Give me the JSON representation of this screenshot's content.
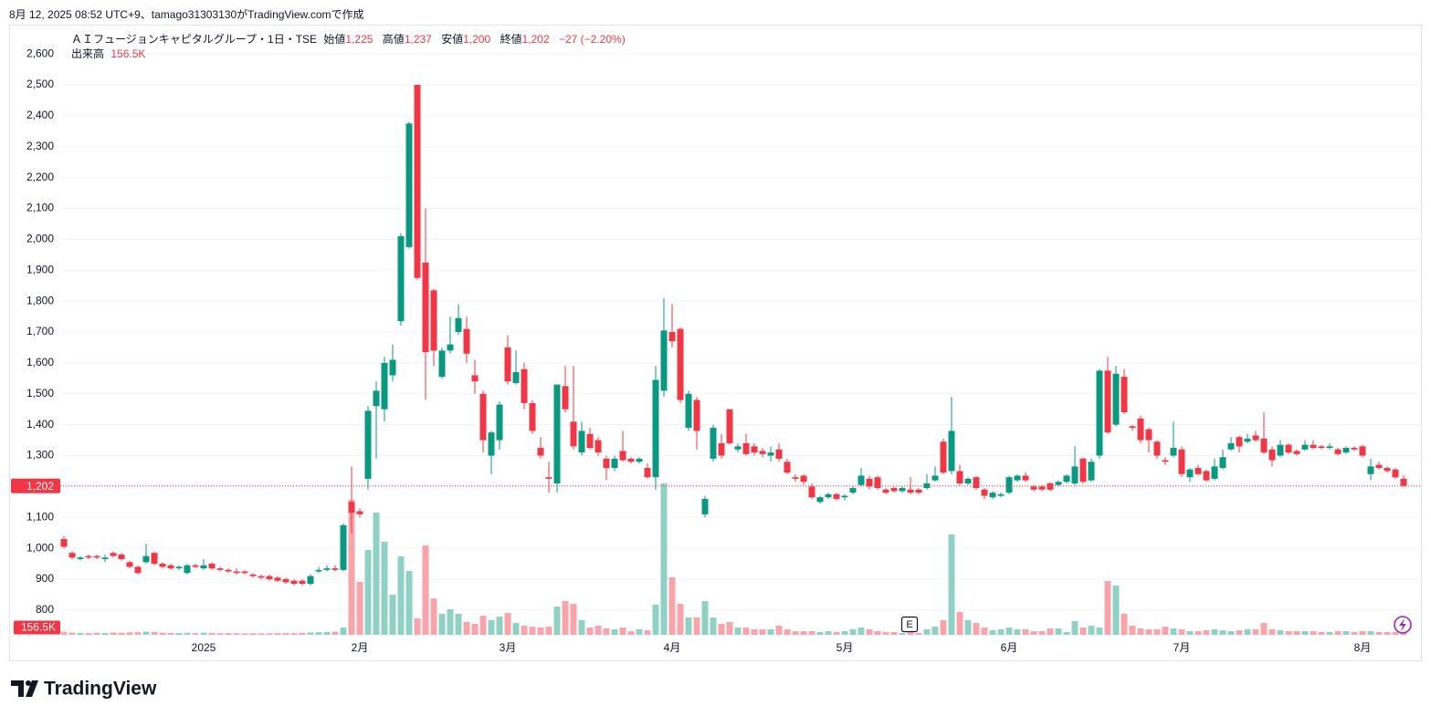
{
  "caption": "8月 12, 2025 08:52 UTC+9、tamago31303130がTradingView.comで作成",
  "legend": {
    "symbol": "ＡＩフュージョンキャピタルグループ・1日・TSE",
    "open_label": "始値",
    "open": "1,225",
    "high_label": "高値",
    "high": "1,237",
    "low_label": "安値",
    "low": "1,200",
    "close_label": "終値",
    "close": "1,202",
    "change": "−27 (−2.20%)",
    "volume_label": "出来高",
    "volume": "156.5K"
  },
  "earnings_marker": "E",
  "logo": "TradingView",
  "chart_data": {
    "type": "candlestick",
    "up_color": "#089981",
    "down_color": "#f23645",
    "grid": true,
    "ylim": [
      717,
      2692
    ],
    "yticks": [
      800,
      900,
      {
        "value": 1000,
        "label": "1,000"
      },
      {
        "value": 1100,
        "label": "1,100"
      },
      {
        "value": 1200,
        "label": "1,200"
      },
      {
        "value": 1300,
        "label": "1,300"
      },
      {
        "value": 1400,
        "label": "1,400"
      },
      {
        "value": 1500,
        "label": "1,500"
      },
      {
        "value": 1600,
        "label": "1,600"
      },
      {
        "value": 1700,
        "label": "1,700"
      },
      {
        "value": 1800,
        "label": "1,800"
      },
      {
        "value": 1900,
        "label": "1,900"
      },
      {
        "value": 2000,
        "label": "2,000"
      },
      {
        "value": 2100,
        "label": "2,100"
      },
      {
        "value": 2200,
        "label": "2,200"
      },
      {
        "value": 2300,
        "label": "2,300"
      },
      {
        "value": 2400,
        "label": "2,400"
      },
      {
        "value": 2500,
        "label": "2,500"
      },
      {
        "value": 2600,
        "label": "2,600"
      }
    ],
    "last_price_label": "1,202",
    "last_volume_label": "156.5K",
    "categories": [
      null,
      null,
      null,
      null,
      null,
      null,
      null,
      null,
      null,
      null,
      null,
      null,
      null,
      null,
      null,
      null,
      null,
      "2025",
      null,
      null,
      null,
      null,
      null,
      null,
      null,
      null,
      null,
      null,
      null,
      null,
      null,
      null,
      null,
      null,
      null,
      null,
      "2月",
      null,
      null,
      null,
      null,
      null,
      null,
      null,
      null,
      null,
      null,
      null,
      null,
      null,
      null,
      null,
      null,
      null,
      "3月",
      null,
      null,
      null,
      null,
      null,
      null,
      null,
      null,
      null,
      null,
      null,
      null,
      null,
      null,
      null,
      null,
      null,
      null,
      null,
      "4月",
      null,
      null,
      null,
      null,
      null,
      null,
      null,
      null,
      null,
      null,
      null,
      null,
      null,
      null,
      null,
      null,
      null,
      null,
      null,
      null,
      "5月",
      null,
      null,
      null,
      null,
      null,
      null,
      null,
      null,
      null,
      null,
      null,
      null,
      null,
      null,
      null,
      null,
      null,
      null,
      null,
      "6月",
      null,
      null,
      null,
      null,
      null,
      null,
      null,
      null,
      null,
      null,
      null,
      null,
      null,
      null,
      null,
      null,
      null,
      null,
      null,
      null,
      "7月",
      null,
      null,
      null,
      null,
      null,
      null,
      null,
      null,
      null,
      null,
      null,
      null,
      null,
      null,
      null,
      null,
      null,
      null,
      null,
      null,
      null,
      "8月",
      null,
      null,
      null,
      null,
      null
    ],
    "open": [
      1030,
      985,
      965,
      975,
      975,
      965,
      985,
      980,
      955,
      940,
      955,
      985,
      950,
      945,
      935,
      920,
      945,
      935,
      950,
      935,
      930,
      925,
      925,
      915,
      910,
      910,
      905,
      900,
      895,
      895,
      885,
      925,
      930,
      935,
      930,
      1150,
      1120,
      1225,
      1460,
      1450,
      1560,
      1735,
      1975,
      2500,
      1925,
      1835,
      1555,
      1640,
      1700,
      1710,
      1560,
      1500,
      1300,
      1350,
      1650,
      1535,
      1580,
      1470,
      1325,
      1230,
      1210,
      1525,
      1410,
      1310,
      1370,
      1350,
      1290,
      1260,
      1315,
      1290,
      1280,
      1260,
      1230,
      1510,
      1700,
      1710,
      1390,
      1480,
      1110,
      1290,
      1340,
      1450,
      1320,
      1340,
      1330,
      1315,
      1300,
      1320,
      1280,
      1230,
      1235,
      1200,
      1150,
      1165,
      1175,
      1165,
      1180,
      1205,
      1225,
      1230,
      1190,
      1195,
      1185,
      1190,
      1190,
      1195,
      1220,
      1345,
      1250,
      1250,
      1210,
      1230,
      1190,
      1165,
      1170,
      1180,
      1220,
      1235,
      1200,
      1200,
      1210,
      1205,
      1215,
      1210,
      1290,
      1220,
      1300,
      1575,
      1400,
      1555,
      1395,
      1420,
      1385,
      1345,
      1285,
      1300,
      1320,
      1230,
      1260,
      1250,
      1225,
      1260,
      1320,
      1360,
      1345,
      1365,
      1355,
      1320,
      1300,
      1335,
      1315,
      1320,
      1335,
      1330,
      1325,
      1320,
      1310,
      1325,
      1330,
      1240,
      1270,
      1260,
      1255,
      1225
    ],
    "high": [
      1040,
      990,
      975,
      980,
      980,
      980,
      990,
      985,
      960,
      945,
      1015,
      990,
      955,
      950,
      945,
      950,
      950,
      965,
      955,
      940,
      935,
      935,
      930,
      920,
      915,
      915,
      910,
      905,
      900,
      900,
      915,
      940,
      945,
      945,
      1080,
      1265,
      1130,
      1460,
      1540,
      1620,
      1660,
      2020,
      2380,
      2500,
      2100,
      1840,
      1650,
      1750,
      1790,
      1750,
      1610,
      1510,
      1380,
      1475,
      1690,
      1640,
      1600,
      1480,
      1360,
      1280,
      1530,
      1590,
      1590,
      1410,
      1390,
      1360,
      1300,
      1300,
      1380,
      1295,
      1295,
      1275,
      1590,
      1810,
      1790,
      1715,
      1510,
      1490,
      1170,
      1400,
      1370,
      1450,
      1340,
      1370,
      1340,
      1325,
      1330,
      1340,
      1290,
      1240,
      1240,
      1210,
      1170,
      1180,
      1180,
      1175,
      1200,
      1260,
      1235,
      1235,
      1195,
      1200,
      1200,
      1230,
      1195,
      1240,
      1265,
      1355,
      1490,
      1270,
      1230,
      1235,
      1195,
      1185,
      1180,
      1235,
      1240,
      1245,
      1205,
      1205,
      1215,
      1220,
      1240,
      1330,
      1295,
      1290,
      1580,
      1620,
      1590,
      1580,
      1400,
      1430,
      1390,
      1350,
      1295,
      1410,
      1330,
      1260,
      1270,
      1255,
      1290,
      1320,
      1360,
      1365,
      1370,
      1380,
      1440,
      1330,
      1350,
      1340,
      1320,
      1350,
      1350,
      1335,
      1340,
      1325,
      1330,
      1330,
      1335,
      1290,
      1280,
      1265,
      1260,
      1237
    ],
    "low": [
      1000,
      965,
      960,
      965,
      965,
      955,
      970,
      960,
      935,
      915,
      950,
      945,
      935,
      930,
      930,
      915,
      935,
      930,
      930,
      925,
      920,
      915,
      915,
      905,
      900,
      895,
      890,
      885,
      880,
      880,
      880,
      920,
      925,
      925,
      925,
      1050,
      1100,
      1190,
      1290,
      1410,
      1540,
      1720,
      1970,
      1870,
      1480,
      1590,
      1550,
      1630,
      1690,
      1600,
      1500,
      1310,
      1240,
      1320,
      1530,
      1530,
      1450,
      1370,
      1290,
      1180,
      1180,
      1440,
      1320,
      1300,
      1320,
      1300,
      1220,
      1250,
      1280,
      1275,
      1275,
      1225,
      1190,
      1490,
      1650,
      1470,
      1380,
      1320,
      1100,
      1280,
      1290,
      1335,
      1310,
      1300,
      1300,
      1295,
      1280,
      1280,
      1240,
      1215,
      1205,
      1160,
      1145,
      1160,
      1155,
      1155,
      1175,
      1200,
      1190,
      1190,
      1175,
      1180,
      1180,
      1175,
      1175,
      1190,
      1215,
      1240,
      1240,
      1205,
      1205,
      1190,
      1160,
      1160,
      1165,
      1175,
      1215,
      1215,
      1185,
      1185,
      1185,
      1200,
      1210,
      1205,
      1210,
      1215,
      1290,
      1370,
      1395,
      1435,
      1380,
      1340,
      1310,
      1290,
      1270,
      1295,
      1230,
      1215,
      1235,
      1215,
      1220,
      1255,
      1315,
      1310,
      1340,
      1345,
      1305,
      1265,
      1295,
      1305,
      1300,
      1315,
      1320,
      1320,
      1320,
      1300,
      1305,
      1315,
      1295,
      1220,
      1255,
      1245,
      1225,
      1200
    ],
    "close": [
      1005,
      970,
      970,
      970,
      970,
      970,
      975,
      965,
      940,
      920,
      975,
      950,
      940,
      935,
      940,
      945,
      940,
      945,
      935,
      930,
      925,
      920,
      920,
      910,
      905,
      900,
      895,
      890,
      885,
      885,
      910,
      930,
      935,
      930,
      1075,
      1115,
      1110,
      1445,
      1510,
      1600,
      1610,
      2010,
      2375,
      1875,
      1635,
      1640,
      1640,
      1660,
      1745,
      1630,
      1540,
      1350,
      1375,
      1465,
      1540,
      1570,
      1470,
      1380,
      1300,
      1225,
      1530,
      1450,
      1330,
      1380,
      1325,
      1310,
      1260,
      1290,
      1285,
      1280,
      1290,
      1230,
      1545,
      1705,
      1670,
      1480,
      1500,
      1380,
      1160,
      1390,
      1300,
      1340,
      1330,
      1305,
      1310,
      1305,
      1310,
      1290,
      1245,
      1225,
      1215,
      1165,
      1165,
      1175,
      1160,
      1170,
      1195,
      1235,
      1200,
      1195,
      1180,
      1185,
      1195,
      1180,
      1180,
      1210,
      1235,
      1245,
      1380,
      1210,
      1225,
      1195,
      1170,
      1180,
      1175,
      1230,
      1235,
      1220,
      1190,
      1190,
      1190,
      1215,
      1235,
      1265,
      1215,
      1280,
      1575,
      1375,
      1565,
      1440,
      1390,
      1350,
      1350,
      1300,
      1280,
      1325,
      1240,
      1255,
      1240,
      1220,
      1265,
      1295,
      1340,
      1330,
      1355,
      1350,
      1310,
      1285,
      1335,
      1310,
      1305,
      1335,
      1325,
      1325,
      1330,
      1305,
      1325,
      1320,
      1300,
      1265,
      1260,
      1250,
      1230,
      1202
    ],
    "volume": [
      210000,
      150000,
      130000,
      120000,
      140000,
      130000,
      160000,
      140000,
      170000,
      180000,
      220000,
      190000,
      150000,
      130000,
      120000,
      140000,
      120000,
      150000,
      130000,
      110000,
      120000,
      110000,
      100000,
      110000,
      100000,
      110000,
      120000,
      130000,
      120000,
      140000,
      160000,
      180000,
      200000,
      210000,
      500000,
      9260000,
      3630000,
      5820000,
      8390000,
      6390000,
      2750000,
      5380000,
      4380000,
      1130000,
      6130000,
      2500000,
      1440000,
      1750000,
      1440000,
      880000,
      750000,
      1310000,
      1000000,
      1250000,
      1500000,
      810000,
      630000,
      560000,
      500000,
      560000,
      1940000,
      2320000,
      2130000,
      1000000,
      500000,
      630000,
      440000,
      380000,
      500000,
      250000,
      380000,
      310000,
      2070000,
      10390000,
      3940000,
      2130000,
      1190000,
      1190000,
      2320000,
      1190000,
      750000,
      880000,
      500000,
      500000,
      380000,
      380000,
      380000,
      630000,
      380000,
      250000,
      250000,
      250000,
      190000,
      250000,
      190000,
      250000,
      380000,
      500000,
      380000,
      250000,
      190000,
      190000,
      130000,
      190000,
      130000,
      380000,
      560000,
      1000000,
      6890000,
      1570000,
      1000000,
      810000,
      500000,
      310000,
      380000,
      500000,
      380000,
      380000,
      250000,
      250000,
      440000,
      440000,
      190000,
      940000,
      500000,
      630000,
      500000,
      3690000,
      3380000,
      1440000,
      630000,
      440000,
      380000,
      380000,
      560000,
      440000,
      380000,
      250000,
      250000,
      310000,
      380000,
      310000,
      250000,
      310000,
      380000,
      380000,
      810000,
      380000,
      310000,
      250000,
      250000,
      250000,
      250000,
      190000,
      190000,
      250000,
      250000,
      190000,
      250000,
      250000,
      190000,
      190000,
      190000,
      156500
    ]
  }
}
